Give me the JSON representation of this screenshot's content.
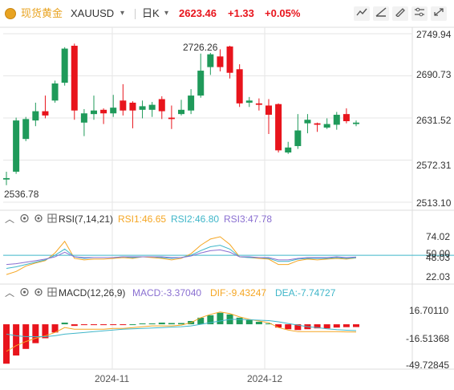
{
  "header": {
    "name": "现货黄金",
    "symbol": "XAUUSD",
    "symbol_caret": "▾",
    "period": "日K",
    "period_caret": "▾",
    "price": "2623.46",
    "change": "+1.33",
    "change_pct": "+0.05%",
    "tools": [
      "draw-line-icon",
      "draw-ray-icon",
      "pen-icon",
      "settings-sliders-icon",
      "fullscreen-icon",
      "close-x-icon"
    ]
  },
  "colors": {
    "up": "#1f9a5a",
    "down": "#e8141c",
    "accent": "#e8a321",
    "grid": "#e6e6e6"
  },
  "price_panel": {
    "high_label": "2726.26",
    "low_label": "2536.78",
    "y_ticks": [
      "2749.94",
      "2690.73",
      "2631.52",
      "2572.31",
      "2513.10"
    ]
  },
  "rsi": {
    "title": "RSI(7,14,21)",
    "rsi1": "RSI1:46.65",
    "rsi2": "RSI2:46.80",
    "rsi3": "RSI3:47.78",
    "y_ticks": [
      "74.02",
      "50.00",
      "48.03",
      "22.03"
    ]
  },
  "macd": {
    "title": "MACD(12,26,9)",
    "macd": "MACD:-3.37040",
    "dif": "DIF:-9.43247",
    "dea": "DEA:-7.74727",
    "y_ticks": [
      "16.70110",
      "-16.51368",
      "-49.72845"
    ]
  },
  "x_axis": {
    "labels": [
      "2024-11",
      "2024-12"
    ]
  },
  "chart_data": [
    {
      "type": "candlestick",
      "title": "XAUUSD 日K",
      "ylim": [
        2513.1,
        2749.94
      ],
      "ohlc": [
        [
          2545,
          2556,
          2537,
          2547
        ],
        [
          2556,
          2632,
          2553,
          2628
        ],
        [
          2602,
          2633,
          2599,
          2630
        ],
        [
          2628,
          2653,
          2620,
          2641
        ],
        [
          2641,
          2663,
          2631,
          2635
        ],
        [
          2656,
          2684,
          2653,
          2680
        ],
        [
          2681,
          2731,
          2677,
          2729
        ],
        [
          2733,
          2736,
          2629,
          2642
        ],
        [
          2625,
          2644,
          2606,
          2638
        ],
        [
          2637,
          2663,
          2629,
          2642
        ],
        [
          2643,
          2645,
          2623,
          2638
        ],
        [
          2638,
          2664,
          2633,
          2646
        ],
        [
          2656,
          2679,
          2635,
          2642
        ],
        [
          2653,
          2655,
          2617,
          2642
        ],
        [
          2643,
          2656,
          2631,
          2648
        ],
        [
          2643,
          2654,
          2633,
          2650
        ],
        [
          2658,
          2662,
          2630,
          2641
        ],
        [
          2632,
          2649,
          2616,
          2630
        ],
        [
          2637,
          2657,
          2635,
          2643
        ],
        [
          2642,
          2672,
          2637,
          2663
        ],
        [
          2663,
          2722,
          2660,
          2698
        ],
        [
          2703,
          2723,
          2692,
          2721
        ],
        [
          2718,
          2728,
          2697,
          2703
        ],
        [
          2732,
          2733,
          2687,
          2695
        ],
        [
          2700,
          2707,
          2647,
          2652
        ],
        [
          2653,
          2661,
          2647,
          2656
        ],
        [
          2652,
          2659,
          2642,
          2650
        ],
        [
          2649,
          2658,
          2609,
          2636
        ],
        [
          2651,
          2652,
          2583,
          2586
        ],
        [
          2583,
          2598,
          2581,
          2590
        ],
        [
          2592,
          2637,
          2588,
          2614
        ],
        [
          2624,
          2637,
          2610,
          2629
        ],
        [
          2624,
          2625,
          2612,
          2622
        ],
        [
          2618,
          2631,
          2616,
          2623
        ],
        [
          2622,
          2640,
          2615,
          2636
        ],
        [
          2637,
          2645,
          2624,
          2627
        ],
        [
          2623,
          2628,
          2620,
          2625
        ]
      ]
    },
    {
      "type": "line",
      "title": "RSI(7,14,21)",
      "ylim": [
        22.03,
        74.02
      ],
      "series": [
        {
          "name": "RSI1",
          "color": "#f5a623",
          "values": [
            25,
            29,
            36,
            40,
            43,
            53,
            68,
            46,
            44,
            45,
            45,
            46,
            47,
            46,
            48,
            47,
            46,
            44,
            46,
            52,
            63,
            71,
            74,
            64,
            48,
            47,
            46,
            45,
            38,
            38,
            43,
            45,
            44,
            45,
            46,
            45,
            46.65
          ]
        },
        {
          "name": "RSI2",
          "color": "#3fb6c9",
          "values": [
            33,
            35,
            38,
            41,
            44,
            50,
            58,
            48,
            46,
            47,
            47,
            47,
            48,
            47,
            48,
            48,
            47,
            46,
            47,
            50,
            56,
            61,
            63,
            58,
            48,
            47,
            47,
            46,
            42,
            42,
            45,
            46,
            46,
            46,
            47,
            46,
            46.8
          ]
        },
        {
          "name": "RSI3",
          "color": "#8a6fd1",
          "values": [
            38,
            39,
            41,
            43,
            45,
            48,
            54,
            48,
            47,
            47,
            47,
            47,
            48,
            48,
            48,
            48,
            48,
            47,
            47,
            49,
            53,
            56,
            57,
            54,
            48,
            48,
            47,
            47,
            44,
            44,
            46,
            47,
            47,
            47,
            48,
            47,
            47.78
          ]
        }
      ]
    },
    {
      "type": "bar",
      "title": "MACD(12,26,9)",
      "ylim": [
        -49.72845,
        16.7011
      ],
      "series": [
        {
          "name": "MACD",
          "values": [
            -48,
            -38,
            -30,
            -23,
            -17,
            -10,
            2,
            -2,
            -1,
            -1,
            -1,
            -0.5,
            -0.5,
            0,
            1,
            1,
            2,
            1.5,
            1.5,
            4,
            8,
            11,
            14,
            12,
            8,
            5,
            3,
            1,
            -4,
            -6,
            -7,
            -6,
            -5,
            -5,
            -4,
            -3.5,
            -3.3704
          ]
        },
        {
          "name": "DIF",
          "color": "#f5a623",
          "values": [
            -33,
            -26,
            -21,
            -17,
            -14,
            -10,
            -4,
            -6,
            -6,
            -6,
            -6,
            -5,
            -5,
            -4,
            -3,
            -2,
            -2,
            -2,
            -1,
            2,
            8,
            12,
            15,
            13,
            9,
            6,
            4,
            2,
            -4,
            -7,
            -9,
            -9,
            -9,
            -9,
            -9,
            -9.3,
            -9.43247
          ]
        },
        {
          "name": "DEA",
          "color": "#3fb6c9",
          "values": [
            -12,
            -14,
            -15,
            -15,
            -15,
            -14,
            -12,
            -11,
            -10,
            -9,
            -8,
            -7,
            -6,
            -5.5,
            -5,
            -4.5,
            -4,
            -3.5,
            -3,
            -2,
            0,
            2,
            4,
            6,
            6,
            5.5,
            5,
            4.5,
            3,
            1,
            -1,
            -3,
            -4,
            -5.5,
            -6.5,
            -7.2,
            -7.74727
          ]
        }
      ]
    }
  ]
}
